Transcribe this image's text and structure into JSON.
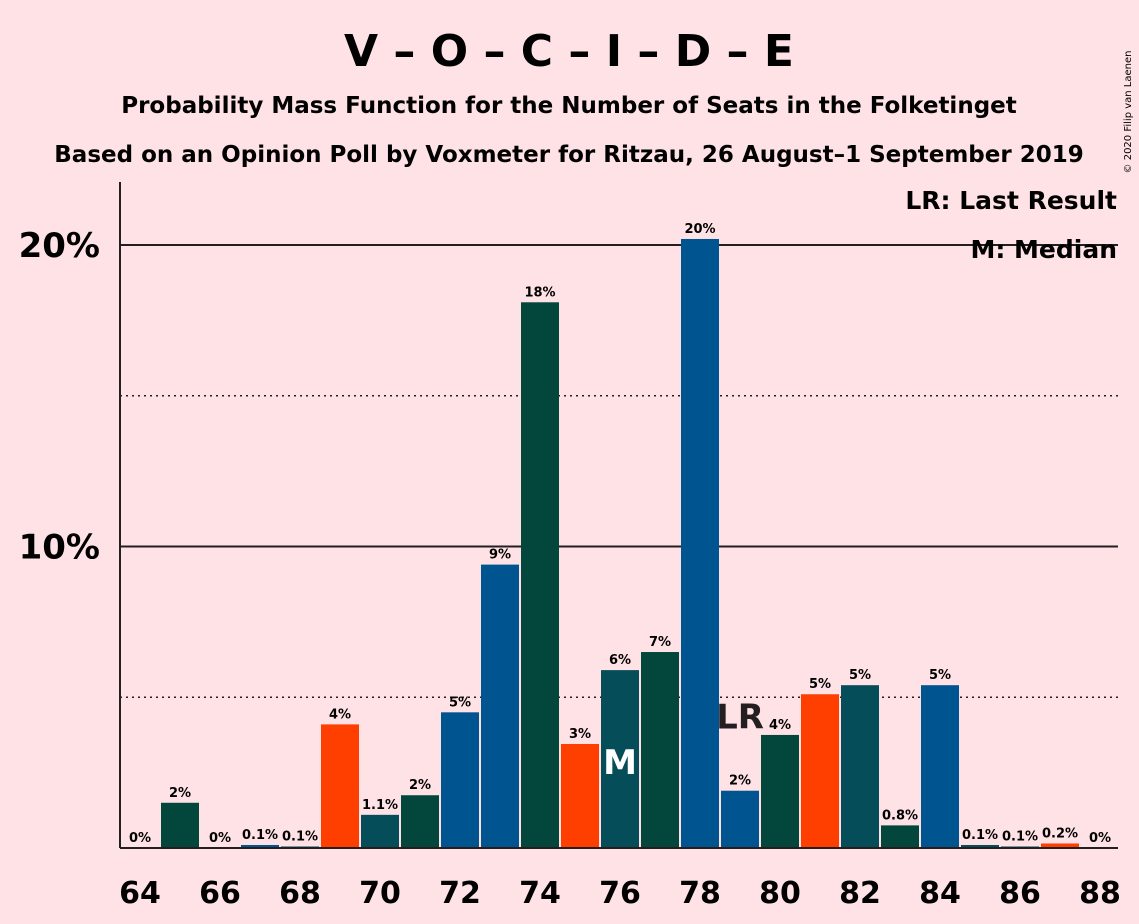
{
  "title": "V – O – C – I – D – E",
  "subtitle_1": "Probability Mass Function for the Number of Seats in the Folketinget",
  "subtitle_2": "Based on an Opinion Poll by Voxmeter for Ritzau, 26 August–1 September 2019",
  "copyright": "© 2020 Filip van Laenen",
  "legend": {
    "last_result": "LR: Last Result",
    "median": "M: Median"
  },
  "markers": {
    "last_result": "LR",
    "median": "M"
  },
  "chart_data": {
    "type": "bar",
    "x": [
      64,
      65,
      66,
      67,
      68,
      69,
      70,
      71,
      72,
      73,
      74,
      75,
      76,
      77,
      78,
      79,
      80,
      81,
      82,
      83,
      84,
      85,
      86,
      87,
      88
    ],
    "values": [
      0,
      1.5,
      0,
      0.1,
      0.05,
      4.1,
      1.1,
      1.75,
      4.5,
      9.4,
      18.1,
      3.45,
      5.9,
      6.5,
      20.2,
      1.9,
      3.75,
      5.1,
      5.4,
      0.75,
      5.4,
      0.1,
      0.05,
      0.15,
      0
    ],
    "labels": [
      "0%",
      "2%",
      "0%",
      "0.1%",
      "0.1%",
      "4%",
      "1.1%",
      "2%",
      "5%",
      "9%",
      "18%",
      "3%",
      "6%",
      "7%",
      "20%",
      "2%",
      "4%",
      "5%",
      "5%",
      "0.8%",
      "5%",
      "0.1%",
      "0.1%",
      "0.2%",
      "0%"
    ],
    "colors": [
      "#00548f",
      "#02463c",
      "#054d58",
      "#00548f",
      "#054d58",
      "#ff3f00",
      "#054d58",
      "#02463c",
      "#00548f",
      "#00548f",
      "#02463c",
      "#ff3f00",
      "#054d58",
      "#02463c",
      "#00548f",
      "#00548f",
      "#02463c",
      "#ff3f00",
      "#054d58",
      "#02463c",
      "#00548f",
      "#054d58",
      "#054d58",
      "#ff3f00",
      "#00548f"
    ],
    "x_ticks": [
      "64",
      "66",
      "68",
      "70",
      "72",
      "74",
      "76",
      "78",
      "80",
      "82",
      "84",
      "86",
      "88"
    ],
    "y_ticks": [
      "10%",
      "20%"
    ],
    "ylim": [
      0,
      22
    ],
    "solid_gridlines": [
      10,
      20
    ],
    "dotted_gridlines": [
      5,
      15
    ],
    "last_result_seat": 79,
    "median_seat": 76
  }
}
